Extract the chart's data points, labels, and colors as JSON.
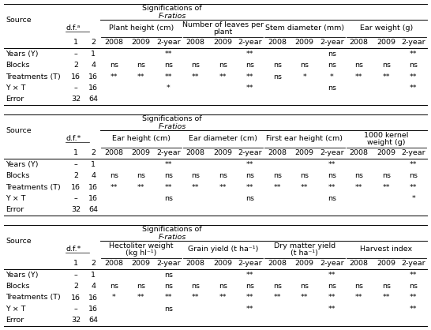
{
  "background_color": "#ffffff",
  "font_size": 6.8,
  "table_sections": [
    {
      "source_label": "Source",
      "df_label": "d.f.ᵃ",
      "col_groups": [
        {
          "name": "Plant height (cm)",
          "two_line": false
        },
        {
          "name": "Number of leaves per\nplant",
          "two_line": true
        },
        {
          "name": "Stem diameter (mm)",
          "two_line": false
        },
        {
          "name": "Ear weight (g)",
          "two_line": false
        }
      ],
      "sub_cols": [
        "2008",
        "2009",
        "2-year"
      ],
      "df_cols": [
        "1",
        "2"
      ],
      "rows": [
        {
          "label": "Years (Y)",
          "df": [
            "–",
            "1"
          ],
          "vals": [
            "",
            "",
            "**",
            "",
            "",
            "**",
            "",
            "",
            "ns",
            "",
            "",
            "**"
          ]
        },
        {
          "label": "Blocks",
          "df": [
            "2",
            "4"
          ],
          "vals": [
            "ns",
            "ns",
            "ns",
            "ns",
            "ns",
            "ns",
            "ns",
            "ns",
            "ns",
            "ns",
            "ns",
            "ns"
          ]
        },
        {
          "label": "Treatments (T)",
          "df": [
            "16",
            "16"
          ],
          "vals": [
            "**",
            "**",
            "**",
            "**",
            "**",
            "**",
            "ns",
            "*",
            "*",
            "**",
            "**",
            "**"
          ]
        },
        {
          "label": "Y × T",
          "df": [
            "–",
            "16"
          ],
          "vals": [
            "",
            "",
            "*",
            "",
            "",
            "**",
            "",
            "",
            "ns",
            "",
            "",
            "**"
          ]
        },
        {
          "label": "Error",
          "df": [
            "32",
            "64"
          ],
          "vals": [
            "",
            "",
            "",
            "",
            "",
            "",
            "",
            "",
            "",
            "",
            "",
            ""
          ]
        }
      ]
    },
    {
      "source_label": "Source",
      "df_label": "d.f.*",
      "col_groups": [
        {
          "name": "Ear height (cm)",
          "two_line": false
        },
        {
          "name": "Ear diameter (cm)",
          "two_line": false
        },
        {
          "name": "First ear height (cm)",
          "two_line": false
        },
        {
          "name": "1000 kernel\nweight (g)",
          "two_line": true
        }
      ],
      "sub_cols": [
        "2008",
        "2009",
        "2-year"
      ],
      "df_cols": [
        "1",
        "2"
      ],
      "rows": [
        {
          "label": "Years (Y)",
          "df": [
            "–",
            "1"
          ],
          "vals": [
            "",
            "",
            "**",
            "",
            "",
            "**",
            "",
            "",
            "**",
            "",
            "",
            "**"
          ]
        },
        {
          "label": "Blocks",
          "df": [
            "2",
            "4"
          ],
          "vals": [
            "ns",
            "ns",
            "ns",
            "ns",
            "ns",
            "ns",
            "ns",
            "ns",
            "ns",
            "ns",
            "ns",
            "ns"
          ]
        },
        {
          "label": "Treatments (T)",
          "df": [
            "16",
            "16"
          ],
          "vals": [
            "**",
            "**",
            "**",
            "**",
            "**",
            "**",
            "**",
            "**",
            "**",
            "**",
            "**",
            "**"
          ]
        },
        {
          "label": "Y × T",
          "df": [
            "–",
            "16"
          ],
          "vals": [
            "",
            "",
            "ns",
            "",
            "",
            "ns",
            "",
            "",
            "ns",
            "",
            "",
            "*"
          ]
        },
        {
          "label": "Error",
          "df": [
            "32",
            "64"
          ],
          "vals": [
            "",
            "",
            "",
            "",
            "",
            "",
            "",
            "",
            "",
            "",
            "",
            ""
          ]
        }
      ]
    },
    {
      "source_label": "Source",
      "df_label": "d.f.*",
      "col_groups": [
        {
          "name": "Hectoliter weight\n(kg hl⁻¹)",
          "two_line": true
        },
        {
          "name": "Grain yield (t ha⁻¹)",
          "two_line": false
        },
        {
          "name": "Dry matter yield\n(t ha⁻¹)",
          "two_line": true
        },
        {
          "name": "Harvest index",
          "two_line": false
        }
      ],
      "sub_cols": [
        "2008",
        "2009",
        "2-year"
      ],
      "df_cols": [
        "1",
        "2"
      ],
      "rows": [
        {
          "label": "Years (Y)",
          "df": [
            "–",
            "1"
          ],
          "vals": [
            "",
            "",
            "ns",
            "",
            "",
            "**",
            "",
            "",
            "**",
            "",
            "",
            "**"
          ]
        },
        {
          "label": "Blocks",
          "df": [
            "2",
            "4"
          ],
          "vals": [
            "ns",
            "ns",
            "ns",
            "ns",
            "ns",
            "ns",
            "ns",
            "ns",
            "ns",
            "ns",
            "ns",
            "ns"
          ]
        },
        {
          "label": "Treatments (T)",
          "df": [
            "16",
            "16"
          ],
          "vals": [
            "*",
            "**",
            "**",
            "**",
            "**",
            "**",
            "**",
            "**",
            "**",
            "**",
            "**",
            "**"
          ]
        },
        {
          "label": "Y × T",
          "df": [
            "–",
            "16"
          ],
          "vals": [
            "",
            "",
            "ns",
            "",
            "",
            "**",
            "",
            "",
            "**",
            "",
            "",
            "**"
          ]
        },
        {
          "label": "Error",
          "df": [
            "32",
            "64"
          ],
          "vals": [
            "",
            "",
            "",
            "",
            "",
            "",
            "",
            "",
            "",
            "",
            "",
            ""
          ]
        }
      ]
    }
  ]
}
